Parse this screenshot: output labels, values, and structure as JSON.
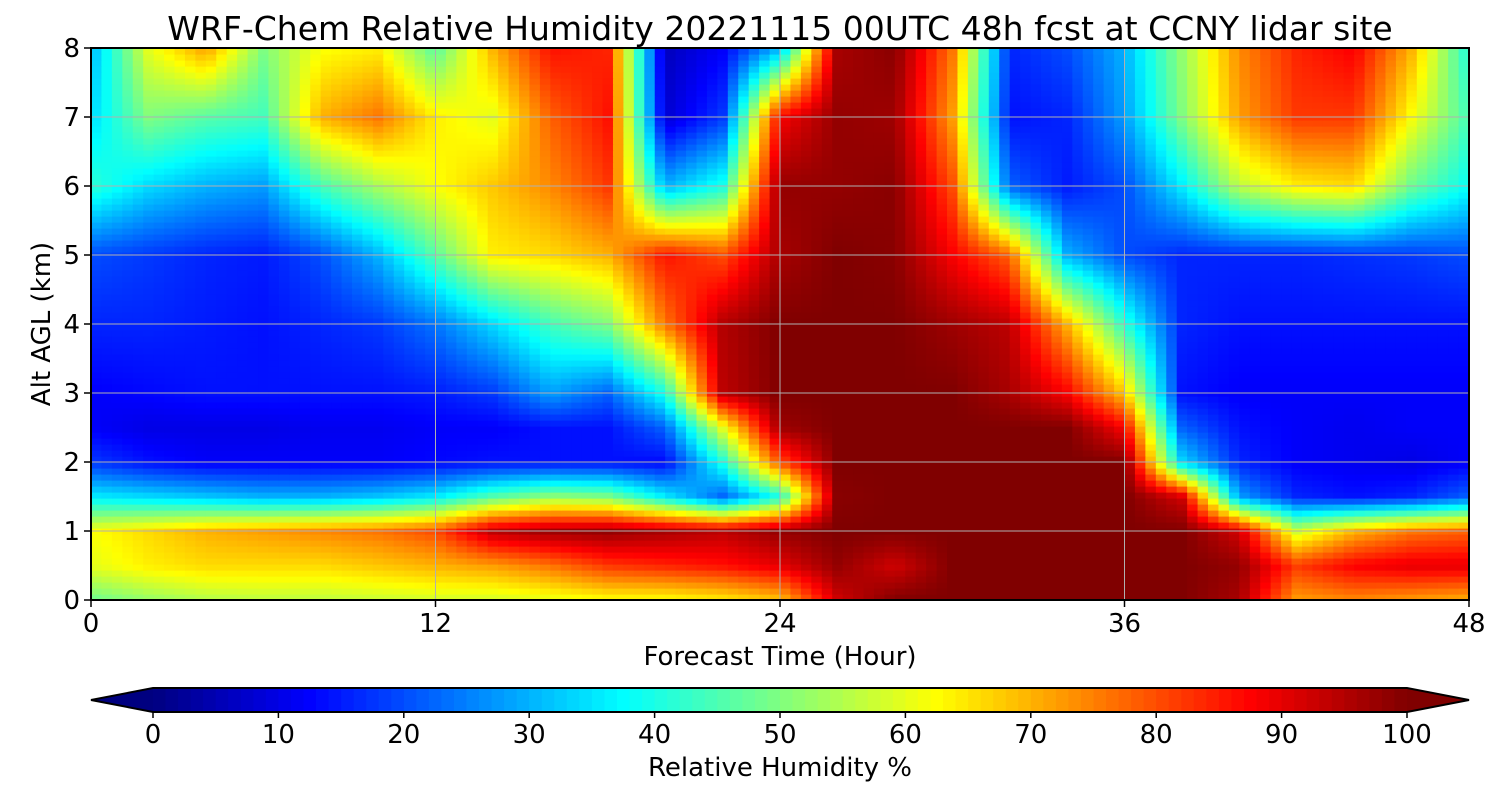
{
  "chart_data": {
    "type": "heatmap",
    "title": "WRF-Chem Relative Humidity 20221115 00UTC 48h fcst at CCNY lidar site",
    "xlabel": "Forecast Time (Hour)",
    "ylabel": "Alt AGL (km)",
    "xlim": [
      0,
      48
    ],
    "ylim": [
      0,
      8
    ],
    "xticks": [
      "0",
      "12",
      "24",
      "36",
      "48"
    ],
    "yticks": [
      "0",
      "1",
      "2",
      "3",
      "4",
      "5",
      "6",
      "7",
      "8"
    ],
    "grid": true,
    "colorbar": {
      "label": "Relative Humidity %",
      "ticks": [
        "0",
        "10",
        "20",
        "30",
        "40",
        "50",
        "60",
        "70",
        "80",
        "90",
        "100"
      ],
      "range": [
        0,
        100
      ],
      "colormap": "jet",
      "extend": "both"
    },
    "x": [
      0,
      2,
      4,
      6,
      8,
      10,
      12,
      14,
      16,
      18,
      20,
      22,
      24,
      26,
      28,
      30,
      32,
      34,
      36,
      38,
      40,
      42,
      44,
      46,
      48
    ],
    "y": [
      0,
      0.5,
      1,
      1.5,
      2,
      2.5,
      3,
      4,
      5,
      6,
      7,
      8
    ],
    "z": [
      [
        48,
        52,
        55,
        56,
        56,
        57,
        58,
        58,
        60,
        62,
        62,
        64,
        68,
        92,
        100,
        100,
        100,
        100,
        100,
        100,
        96,
        72,
        74,
        72,
        70
      ],
      [
        60,
        64,
        66,
        66,
        66,
        68,
        70,
        72,
        76,
        82,
        84,
        86,
        90,
        98,
        92,
        100,
        100,
        100,
        100,
        100,
        98,
        82,
        88,
        90,
        90
      ],
      [
        62,
        66,
        70,
        72,
        74,
        76,
        80,
        94,
        97,
        98,
        96,
        94,
        98,
        100,
        100,
        100,
        100,
        100,
        100,
        100,
        92,
        58,
        70,
        76,
        78
      ],
      [
        36,
        34,
        32,
        30,
        30,
        32,
        36,
        46,
        52,
        50,
        36,
        22,
        40,
        99,
        100,
        100,
        100,
        100,
        100,
        92,
        28,
        16,
        14,
        16,
        22
      ],
      [
        18,
        14,
        12,
        12,
        12,
        12,
        13,
        14,
        14,
        14,
        13,
        40,
        80,
        100,
        100,
        100,
        100,
        100,
        100,
        34,
        16,
        12,
        11,
        10,
        12
      ],
      [
        12,
        10,
        10,
        10,
        11,
        11,
        12,
        12,
        14,
        14,
        22,
        60,
        97,
        100,
        100,
        100,
        100,
        100,
        88,
        22,
        14,
        12,
        11,
        12,
        12
      ],
      [
        12,
        13,
        14,
        14,
        14,
        14,
        15,
        18,
        28,
        22,
        40,
        94,
        100,
        100,
        100,
        100,
        96,
        88,
        68,
        14,
        12,
        12,
        12,
        12,
        12
      ],
      [
        16,
        16,
        15,
        14,
        16,
        18,
        24,
        34,
        44,
        50,
        76,
        95,
        100,
        100,
        100,
        97,
        94,
        70,
        42,
        16,
        14,
        14,
        14,
        14,
        14
      ],
      [
        20,
        18,
        16,
        15,
        20,
        30,
        46,
        64,
        66,
        70,
        86,
        80,
        96,
        100,
        99,
        88,
        78,
        30,
        20,
        16,
        16,
        16,
        17,
        18,
        20
      ],
      [
        42,
        34,
        30,
        28,
        44,
        54,
        62,
        68,
        74,
        82,
        30,
        40,
        98,
        98,
        99,
        80,
        22,
        15,
        20,
        36,
        56,
        64,
        66,
        48,
        38
      ],
      [
        34,
        50,
        46,
        44,
        70,
        76,
        64,
        60,
        78,
        86,
        8,
        18,
        88,
        98,
        97,
        72,
        14,
        16,
        28,
        50,
        72,
        82,
        82,
        62,
        44
      ],
      [
        30,
        60,
        72,
        50,
        62,
        64,
        46,
        70,
        86,
        84,
        6,
        12,
        30,
        96,
        99,
        76,
        16,
        20,
        30,
        52,
        74,
        84,
        88,
        70,
        40
      ]
    ]
  }
}
